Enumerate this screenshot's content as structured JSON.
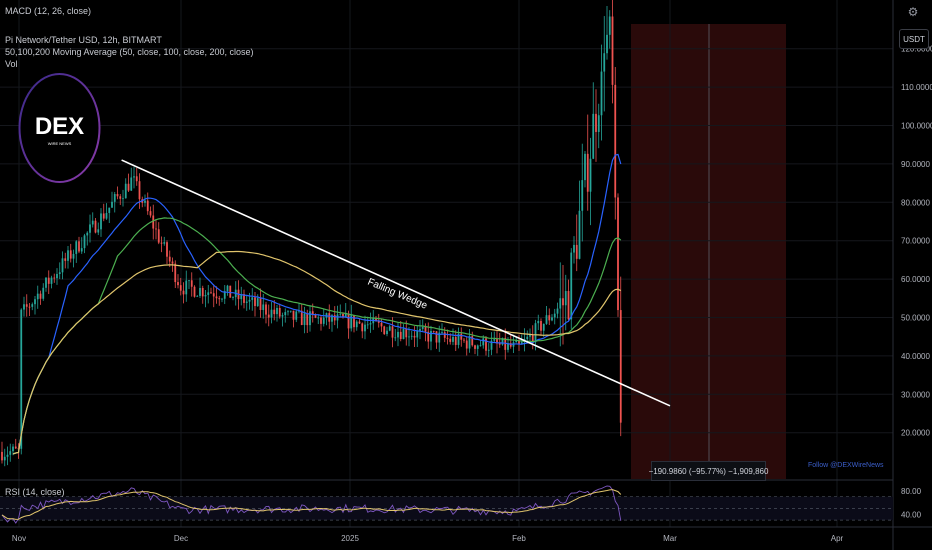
{
  "header": {
    "macd_label": "MACD (12, 26, close)",
    "symbol_label": "Pi Network/Tether USD, 12h, BITMART",
    "ma_label": "50,100,200 Moving Average (50, close, 100, close, 200, close)",
    "vol_label": "Vol"
  },
  "currency_button": "USDT",
  "logo": {
    "name": "DEX",
    "subtitle": "WIRE NEWS"
  },
  "annotation": "Falling Wedge",
  "measure_label": "−190.9860 (−95.77%) −1,909,860",
  "watermark": "Follow @DEXWireNews",
  "rsi_label": "RSI (14, close)",
  "colors": {
    "background": "#000000",
    "up": "#26a69a",
    "down": "#ef5350",
    "ma50": "#2962ff",
    "ma100": "#4caf50",
    "ma200": "#e0c46c",
    "rsi": "#7e57c2",
    "rsi_ma": "#e0c46c",
    "shaded_region": "#2a0a0a",
    "trendline": "#ffffff"
  },
  "chart_data": [
    {
      "type": "candlestick",
      "title": "Pi Network/Tether USD, 12h, BITMART",
      "y_axis_ticks": [
        "120.0000",
        "110.0000",
        "100.0000",
        "90.0000",
        "80.0000",
        "70.0000",
        "60.0000",
        "50.0000",
        "40.0000",
        "30.0000",
        "20.0000"
      ],
      "ylim": [
        14,
        130
      ],
      "x_axis_ticks": [
        "Nov",
        "Dec",
        "2025",
        "Feb",
        "Mar",
        "Apr"
      ],
      "series": [
        {
          "name": "Price",
          "type": "candlestick",
          "waypoints": [
            {
              "x": "Nov",
              "y": 50
            },
            {
              "x": "Nov 22",
              "y": 86
            },
            {
              "x": "Dec",
              "y": 58
            },
            {
              "x": "Dec 10",
              "y": 56
            },
            {
              "x": "Dec 20",
              "y": 50
            },
            {
              "x": "2025",
              "y": 49
            },
            {
              "x": "Jan 20",
              "y": 44
            },
            {
              "x": "Feb",
              "y": 42
            },
            {
              "x": "Feb 10",
              "y": 55
            },
            {
              "x": "Feb 18",
              "y": 130
            },
            {
              "x": "Feb 20",
              "y": 15
            }
          ]
        },
        {
          "name": "MA 50",
          "type": "line"
        },
        {
          "name": "MA 100",
          "type": "line"
        },
        {
          "name": "MA 200",
          "type": "line"
        }
      ],
      "trendline": {
        "start": {
          "x": "Nov 20",
          "y": 91
        },
        "end": {
          "x": "Mar 1",
          "y": 27
        },
        "label": "Falling Wedge"
      },
      "shaded_region_x": [
        "Feb 20",
        "Mar 16"
      ],
      "grid": true
    },
    {
      "type": "line",
      "title": "RSI (14, close)",
      "y_axis_ticks": [
        "80.00",
        "40.00"
      ],
      "ylim": [
        20,
        95
      ],
      "reference_lines": [
        70,
        50,
        30
      ],
      "series": [
        {
          "name": "RSI",
          "waypoints": [
            {
              "x": "Nov",
              "y": 50
            },
            {
              "x": "Nov 22",
              "y": 80
            },
            {
              "x": "Dec",
              "y": 48
            },
            {
              "x": "2025",
              "y": 50
            },
            {
              "x": "Feb",
              "y": 45
            },
            {
              "x": "Feb 18",
              "y": 88
            },
            {
              "x": "Feb 20",
              "y": 32
            }
          ]
        }
      ]
    }
  ]
}
